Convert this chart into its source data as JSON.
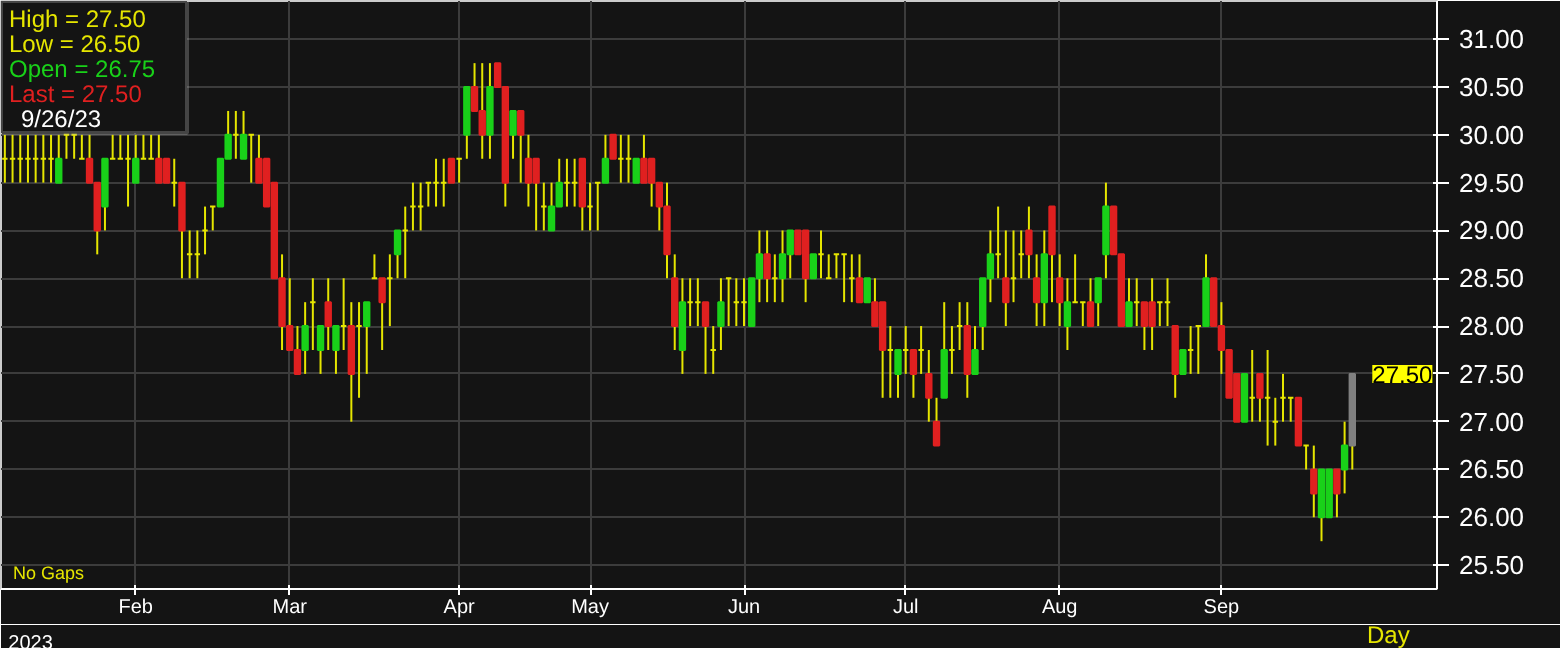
{
  "chart_data": {
    "type": "candlestick",
    "categories": [
      null,
      null,
      null,
      null,
      null,
      null,
      null,
      null,
      null,
      null,
      null,
      null,
      null,
      null,
      null,
      null,
      null,
      "Feb",
      null,
      null,
      null,
      null,
      null,
      null,
      null,
      null,
      null,
      null,
      null,
      null,
      null,
      null,
      null,
      null,
      null,
      null,
      null,
      "Mar",
      null,
      null,
      null,
      null,
      null,
      null,
      null,
      null,
      null,
      null,
      null,
      null,
      null,
      null,
      null,
      null,
      null,
      null,
      null,
      null,
      null,
      "Apr",
      null,
      null,
      null,
      null,
      null,
      null,
      null,
      null,
      null,
      null,
      null,
      null,
      null,
      null,
      null,
      null,
      "May",
      null,
      null,
      null,
      null,
      null,
      null,
      null,
      null,
      null,
      null,
      null,
      null,
      null,
      null,
      null,
      null,
      null,
      null,
      null,
      "Jun",
      null,
      null,
      null,
      null,
      null,
      null,
      null,
      null,
      null,
      null,
      null,
      null,
      null,
      null,
      null,
      null,
      null,
      null,
      null,
      null,
      "Jul",
      null,
      null,
      null,
      null,
      null,
      null,
      null,
      null,
      null,
      null,
      null,
      null,
      null,
      null,
      null,
      null,
      null,
      null,
      null,
      "Aug",
      null,
      null,
      null,
      null,
      null,
      null,
      null,
      null,
      null,
      null,
      null,
      null,
      null,
      null,
      null,
      null,
      null,
      null,
      null,
      null,
      "Sep",
      null,
      null,
      null,
      null,
      null,
      null,
      null,
      null,
      null,
      null,
      null,
      null,
      null,
      null,
      null,
      null,
      null
    ],
    "series": [
      {
        "color": "#e6e600",
        "ohlc": [
          [
            29.75,
            30.0,
            29.5,
            29.75
          ],
          [
            29.75,
            30.0,
            29.5,
            29.75
          ],
          [
            29.75,
            30.0,
            29.5,
            29.75
          ],
          [
            29.75,
            30.0,
            29.5,
            29.75
          ],
          [
            29.75,
            30.0,
            29.5,
            29.75
          ],
          [
            29.75,
            30.0,
            29.5,
            29.75
          ],
          [
            29.75,
            30.0,
            29.5,
            29.75
          ],
          [
            29.5,
            30.0,
            29.5,
            29.75
          ],
          [
            30.0,
            30.0,
            29.75,
            30.0
          ],
          [
            30.0,
            30.0,
            29.75,
            30.0
          ],
          [
            29.75,
            30.0,
            29.75,
            29.75
          ],
          [
            29.75,
            30.0,
            29.5,
            29.5
          ],
          [
            29.5,
            29.5,
            28.75,
            29.0
          ],
          [
            29.25,
            29.75,
            29.0,
            29.75
          ],
          [
            29.75,
            30.0,
            29.75,
            29.75
          ],
          [
            29.75,
            30.0,
            29.75,
            29.75
          ],
          [
            29.75,
            30.0,
            29.25,
            29.75
          ],
          [
            29.5,
            30.0,
            29.5,
            29.75
          ],
          [
            29.75,
            30.0,
            29.75,
            29.75
          ],
          [
            29.75,
            30.0,
            29.75,
            29.75
          ],
          [
            29.75,
            30.0,
            29.5,
            29.5
          ],
          [
            29.75,
            29.75,
            29.5,
            29.5
          ],
          [
            29.5,
            29.75,
            29.25,
            29.5
          ],
          [
            29.5,
            29.5,
            28.5,
            29.0
          ],
          [
            28.75,
            29.0,
            28.5,
            28.75
          ],
          [
            28.75,
            29.0,
            28.5,
            28.75
          ],
          [
            29.0,
            29.25,
            28.75,
            29.0
          ],
          [
            29.25,
            29.25,
            29.0,
            29.25
          ],
          [
            29.25,
            29.75,
            29.25,
            29.75
          ],
          [
            29.75,
            30.25,
            29.75,
            30.0
          ],
          [
            30.0,
            30.25,
            29.75,
            30.0
          ],
          [
            29.75,
            30.25,
            29.75,
            30.0
          ],
          [
            30.0,
            30.0,
            29.5,
            30.0
          ],
          [
            29.75,
            30.0,
            29.5,
            29.5
          ],
          [
            29.75,
            29.75,
            29.25,
            29.25
          ],
          [
            29.5,
            29.5,
            28.5,
            28.5
          ],
          [
            28.5,
            28.75,
            27.75,
            28.0
          ],
          [
            28.0,
            28.5,
            27.75,
            27.75
          ],
          [
            27.75,
            28.0,
            27.5,
            27.5
          ],
          [
            27.75,
            28.25,
            27.5,
            28.0
          ],
          [
            28.25,
            28.5,
            27.75,
            28.25
          ],
          [
            27.75,
            28.0,
            27.5,
            28.0
          ],
          [
            28.25,
            28.5,
            27.75,
            28.0
          ],
          [
            27.75,
            28.0,
            27.5,
            28.0
          ],
          [
            28.0,
            28.5,
            27.75,
            28.0
          ],
          [
            28.0,
            28.25,
            27.0,
            27.5
          ],
          [
            28.0,
            28.25,
            27.25,
            28.0
          ],
          [
            28.0,
            28.25,
            27.5,
            28.25
          ],
          [
            28.5,
            28.75,
            28.5,
            28.5
          ],
          [
            28.5,
            28.5,
            27.75,
            28.25
          ],
          [
            28.5,
            28.75,
            28.0,
            28.5
          ],
          [
            28.75,
            29.0,
            28.5,
            29.0
          ],
          [
            29.0,
            29.25,
            28.5,
            29.0
          ],
          [
            29.25,
            29.5,
            29.0,
            29.25
          ],
          [
            29.25,
            29.5,
            29.0,
            29.25
          ],
          [
            29.5,
            29.5,
            29.25,
            29.5
          ],
          [
            29.5,
            29.75,
            29.25,
            29.5
          ],
          [
            29.5,
            29.75,
            29.25,
            29.5
          ],
          [
            29.75,
            29.75,
            29.5,
            29.5
          ],
          [
            29.75,
            29.75,
            29.5,
            29.75
          ],
          [
            30.0,
            30.5,
            29.75,
            30.5
          ],
          [
            30.5,
            30.75,
            30.25,
            30.25
          ],
          [
            30.25,
            30.75,
            29.75,
            30.0
          ],
          [
            30.0,
            30.75,
            29.75,
            30.5
          ],
          [
            30.75,
            30.75,
            30.5,
            30.5
          ],
          [
            30.5,
            30.5,
            29.25,
            29.5
          ],
          [
            30.0,
            30.25,
            29.75,
            30.25
          ],
          [
            30.25,
            30.25,
            29.5,
            30.0
          ],
          [
            29.75,
            30.0,
            29.25,
            29.5
          ],
          [
            29.75,
            29.75,
            29.0,
            29.5
          ],
          [
            29.25,
            29.5,
            29.0,
            29.25
          ],
          [
            29.0,
            29.5,
            29.0,
            29.25
          ],
          [
            29.25,
            29.75,
            29.25,
            29.5
          ],
          [
            29.5,
            29.75,
            29.25,
            29.5
          ],
          [
            29.5,
            29.75,
            29.25,
            29.5
          ],
          [
            29.75,
            29.75,
            29.0,
            29.25
          ],
          [
            29.25,
            29.5,
            29.0,
            29.25
          ],
          [
            29.5,
            29.5,
            29.0,
            29.5
          ],
          [
            29.5,
            30.0,
            29.5,
            29.75
          ],
          [
            30.0,
            30.0,
            29.75,
            29.75
          ],
          [
            29.75,
            30.0,
            29.5,
            29.75
          ],
          [
            29.75,
            30.0,
            29.5,
            29.75
          ],
          [
            29.5,
            29.75,
            29.5,
            29.75
          ],
          [
            29.75,
            30.0,
            29.5,
            29.5
          ],
          [
            29.75,
            29.75,
            29.25,
            29.5
          ],
          [
            29.5,
            29.5,
            29.0,
            29.25
          ],
          [
            29.25,
            29.5,
            28.5,
            28.75
          ],
          [
            28.5,
            28.75,
            27.75,
            28.0
          ],
          [
            27.75,
            28.5,
            27.5,
            28.25
          ],
          [
            28.25,
            28.5,
            28.0,
            28.25
          ],
          [
            28.25,
            28.5,
            28.0,
            28.25
          ],
          [
            28.25,
            28.25,
            27.5,
            28.0
          ],
          [
            27.75,
            28.0,
            27.5,
            27.75
          ],
          [
            28.0,
            28.5,
            27.75,
            28.25
          ],
          [
            28.5,
            28.5,
            28.0,
            28.5
          ],
          [
            28.25,
            28.5,
            28.0,
            28.25
          ],
          [
            28.25,
            28.5,
            28.0,
            28.25
          ],
          [
            28.0,
            28.5,
            28.0,
            28.5
          ],
          [
            28.5,
            29.0,
            28.25,
            28.75
          ],
          [
            28.75,
            29.0,
            28.25,
            28.5
          ],
          [
            28.5,
            28.75,
            28.25,
            28.5
          ],
          [
            28.5,
            29.0,
            28.25,
            28.75
          ],
          [
            28.75,
            29.0,
            28.5,
            29.0
          ],
          [
            29.0,
            29.0,
            28.75,
            28.75
          ],
          [
            29.0,
            29.0,
            28.25,
            28.5
          ],
          [
            28.5,
            28.75,
            28.5,
            28.75
          ],
          [
            28.75,
            29.0,
            28.5,
            28.75
          ],
          [
            28.5,
            28.75,
            28.5,
            28.5
          ],
          [
            28.75,
            28.75,
            28.5,
            28.75
          ],
          [
            28.75,
            28.75,
            28.25,
            28.75
          ],
          [
            28.5,
            28.75,
            28.25,
            28.5
          ],
          [
            28.5,
            28.75,
            28.25,
            28.25
          ],
          [
            28.25,
            28.5,
            28.25,
            28.5
          ],
          [
            28.25,
            28.5,
            28.0,
            28.0
          ],
          [
            28.25,
            28.25,
            27.25,
            27.75
          ],
          [
            27.75,
            28.0,
            27.25,
            27.75
          ],
          [
            27.5,
            27.75,
            27.25,
            27.75
          ],
          [
            27.75,
            28.0,
            27.5,
            27.75
          ],
          [
            27.75,
            27.75,
            27.25,
            27.5
          ],
          [
            27.75,
            28.0,
            27.5,
            27.75
          ],
          [
            27.5,
            27.75,
            27.0,
            27.25
          ],
          [
            27.0,
            27.25,
            26.75,
            26.75
          ],
          [
            27.25,
            28.25,
            27.25,
            27.75
          ],
          [
            27.75,
            28.0,
            27.5,
            27.75
          ],
          [
            28.0,
            28.25,
            27.75,
            28.0
          ],
          [
            28.0,
            28.25,
            27.25,
            27.5
          ],
          [
            27.5,
            28.0,
            27.5,
            27.75
          ],
          [
            28.0,
            28.5,
            27.75,
            28.5
          ],
          [
            28.5,
            29.0,
            28.25,
            28.75
          ],
          [
            28.75,
            29.25,
            28.5,
            28.75
          ],
          [
            28.5,
            29.0,
            28.0,
            28.25
          ],
          [
            28.5,
            29.0,
            28.25,
            28.5
          ],
          [
            28.75,
            29.0,
            28.5,
            28.75
          ],
          [
            29.0,
            29.25,
            28.5,
            28.75
          ],
          [
            28.5,
            28.75,
            28.0,
            28.25
          ],
          [
            28.25,
            29.0,
            28.0,
            28.75
          ],
          [
            29.25,
            29.25,
            28.25,
            28.75
          ],
          [
            28.5,
            28.75,
            28.0,
            28.25
          ],
          [
            28.0,
            28.5,
            27.75,
            28.25
          ],
          [
            28.25,
            28.75,
            28.25,
            28.25
          ],
          [
            28.25,
            28.25,
            28.0,
            28.25
          ],
          [
            28.25,
            28.5,
            28.0,
            28.0
          ],
          [
            28.25,
            28.5,
            28.0,
            28.5
          ],
          [
            28.75,
            29.5,
            28.5,
            29.25
          ],
          [
            29.25,
            29.25,
            28.75,
            28.75
          ],
          [
            28.75,
            28.75,
            28.0,
            28.0
          ],
          [
            28.0,
            28.5,
            28.0,
            28.25
          ],
          [
            28.25,
            28.5,
            28.0,
            28.25
          ],
          [
            28.25,
            28.25,
            27.75,
            28.0
          ],
          [
            28.25,
            28.5,
            27.75,
            28.0
          ],
          [
            28.25,
            28.25,
            28.0,
            28.25
          ],
          [
            28.25,
            28.5,
            28.0,
            28.25
          ],
          [
            28.0,
            28.0,
            27.25,
            27.5
          ],
          [
            27.5,
            27.75,
            27.5,
            27.75
          ],
          [
            27.75,
            28.0,
            27.5,
            27.75
          ],
          [
            28.0,
            28.0,
            27.5,
            28.0
          ],
          [
            28.0,
            28.75,
            28.0,
            28.5
          ],
          [
            28.5,
            28.5,
            28.0,
            28.0
          ],
          [
            28.0,
            28.25,
            27.5,
            27.75
          ],
          [
            27.75,
            27.75,
            27.25,
            27.25
          ],
          [
            27.5,
            27.5,
            27.0,
            27.0
          ],
          [
            27.0,
            27.5,
            27.0,
            27.5
          ],
          [
            27.25,
            27.75,
            27.0,
            27.25
          ],
          [
            27.5,
            27.5,
            27.0,
            27.25
          ],
          [
            27.25,
            27.75,
            26.75,
            27.25
          ],
          [
            27.0,
            27.25,
            26.75,
            27.0
          ],
          [
            27.25,
            27.5,
            27.0,
            27.25
          ],
          [
            27.25,
            27.25,
            27.0,
            27.25
          ],
          [
            27.25,
            27.25,
            26.75,
            26.75
          ],
          [
            26.75,
            26.75,
            26.5,
            26.75
          ],
          [
            26.5,
            26.75,
            26.0,
            26.25
          ],
          [
            26.0,
            26.5,
            25.75,
            26.5
          ],
          [
            26.0,
            26.5,
            26.0,
            26.5
          ],
          [
            26.5,
            26.5,
            26.0,
            26.25
          ],
          [
            26.5,
            27.0,
            26.25,
            26.75
          ],
          [
            26.75,
            27.5,
            26.5,
            27.5
          ]
        ],
        "colors": [
          "#e6e600",
          "#e6e600",
          "#e6e600",
          "#e6e600",
          "#e6e600",
          "#e6e600",
          "#e6e600",
          "#19d119",
          "#e6e600",
          "#e6e600",
          "#e6e600",
          "#e02020",
          "#e02020",
          "#19d119",
          "#e6e600",
          "#e6e600",
          "#e6e600",
          "#19d119",
          "#e6e600",
          "#e6e600",
          "#e02020",
          "#e02020",
          "#e6e600",
          "#e02020",
          "#e6e600",
          "#e6e600",
          "#e6e600",
          "#e6e600",
          "#19d119",
          "#19d119",
          "#e6e600",
          "#19d119",
          "#e6e600",
          "#e02020",
          "#e02020",
          "#e02020",
          "#e02020",
          "#e02020",
          "#e02020",
          "#19d119",
          "#e6e600",
          "#19d119",
          "#e02020",
          "#19d119",
          "#e6e600",
          "#e02020",
          "#e6e600",
          "#19d119",
          "#e6e600",
          "#e02020",
          "#e6e600",
          "#19d119",
          "#e6e600",
          "#e6e600",
          "#e6e600",
          "#e6e600",
          "#e6e600",
          "#e6e600",
          "#e02020",
          "#e6e600",
          "#19d119",
          "#e02020",
          "#e02020",
          "#19d119",
          "#e02020",
          "#e02020",
          "#19d119",
          "#e02020",
          "#e02020",
          "#e02020",
          "#e6e600",
          "#19d119",
          "#19d119",
          "#e6e600",
          "#e6e600",
          "#e02020",
          "#e6e600",
          "#e6e600",
          "#19d119",
          "#e02020",
          "#e6e600",
          "#e6e600",
          "#19d119",
          "#e02020",
          "#e02020",
          "#e02020",
          "#e02020",
          "#e02020",
          "#19d119",
          "#e6e600",
          "#e6e600",
          "#e02020",
          "#e6e600",
          "#19d119",
          "#e6e600",
          "#e6e600",
          "#e6e600",
          "#19d119",
          "#19d119",
          "#e02020",
          "#e6e600",
          "#19d119",
          "#19d119",
          "#e02020",
          "#e02020",
          "#19d119",
          "#e6e600",
          "#e6e600",
          "#e6e600",
          "#e6e600",
          "#e6e600",
          "#e02020",
          "#19d119",
          "#e02020",
          "#e02020",
          "#e6e600",
          "#19d119",
          "#e6e600",
          "#e02020",
          "#e6e600",
          "#e02020",
          "#e02020",
          "#19d119",
          "#e6e600",
          "#e6e600",
          "#e02020",
          "#19d119",
          "#19d119",
          "#19d119",
          "#e6e600",
          "#e02020",
          "#e6e600",
          "#e6e600",
          "#e02020",
          "#e02020",
          "#19d119",
          "#e02020",
          "#e02020",
          "#19d119",
          "#e6e600",
          "#e6e600",
          "#e02020",
          "#19d119",
          "#19d119",
          "#e02020",
          "#e02020",
          "#19d119",
          "#e6e600",
          "#e02020",
          "#e02020",
          "#e6e600",
          "#e6e600",
          "#e02020",
          "#19d119",
          "#e6e600",
          "#e6e600",
          "#19d119",
          "#e02020",
          "#e02020",
          "#e02020",
          "#e02020",
          "#19d119",
          "#e6e600",
          "#e02020",
          "#e6e600",
          "#e6e600",
          "#e6e600",
          "#e6e600",
          "#e02020",
          "#e6e600",
          "#e02020",
          "#19d119",
          "#19d119",
          "#e02020",
          "#19d119",
          "#808080"
        ]
      }
    ],
    "ylim": [
      25.25,
      31.4
    ],
    "yticks": [
      {
        "value": 25.5,
        "label": "25.50"
      },
      {
        "value": 26,
        "label": "26.00"
      },
      {
        "value": 26.5,
        "label": "26.50"
      },
      {
        "value": 27,
        "label": "27.00"
      },
      {
        "value": 27.5,
        "label": "27.50"
      },
      {
        "value": 28,
        "label": "28.00"
      },
      {
        "value": 28.5,
        "label": "28.50"
      },
      {
        "value": 29,
        "label": "29.00"
      },
      {
        "value": 29.5,
        "label": "29.50"
      },
      {
        "value": 30,
        "label": "30.00"
      },
      {
        "value": 30.5,
        "label": "30.50"
      },
      {
        "value": 31,
        "label": "31.00"
      }
    ],
    "grid": true,
    "annotations": [
      "High   =  27.50",
      "Low    =  26.50",
      "Open  =  26.75",
      "Last   =  27.50",
      "9/26/23",
      "No Gaps",
      "2023",
      "Day",
      "27.50"
    ]
  }
}
